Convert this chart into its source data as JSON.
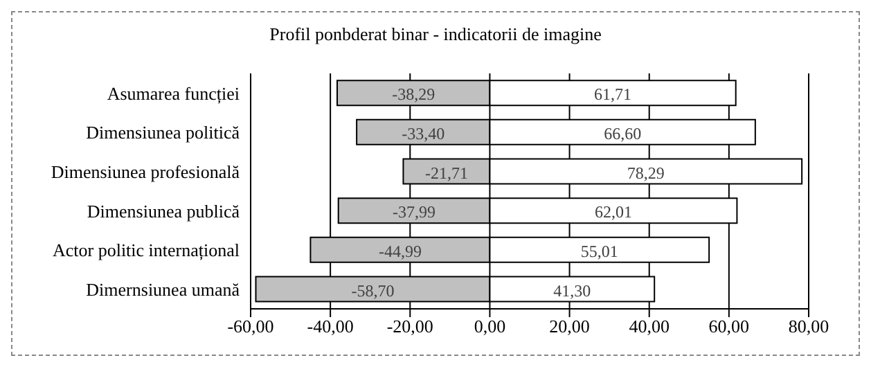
{
  "chart_data": {
    "type": "bar",
    "title": "Profil ponbderat binar - indicatorii de imagine",
    "orientation": "horizontal",
    "stacked": true,
    "categories": [
      "Asumarea funcției",
      "Dimensiunea politică",
      "Dimensiunea profesională",
      "Dimensiunea publică",
      "Actor politic internațional",
      "Dimernsiunea umană"
    ],
    "series": [
      {
        "color": "#c0c0c0",
        "values": [
          -38.29,
          -33.4,
          -21.71,
          -37.99,
          -44.99,
          -58.7
        ],
        "value_labels": [
          "-38,29",
          "-33,40",
          "-21,71",
          "-37,99",
          "-44,99",
          "-58,70"
        ]
      },
      {
        "color": "#ffffff",
        "values": [
          61.71,
          66.6,
          78.29,
          62.01,
          55.01,
          41.3
        ],
        "value_labels": [
          "61,71",
          "66,60",
          "78,29",
          "62,01",
          "55,01",
          "41,30"
        ]
      }
    ],
    "xlim": [
      -60,
      80
    ],
    "xticks": [
      {
        "value": -60,
        "label": "-60,00"
      },
      {
        "value": -40,
        "label": "-40,00"
      },
      {
        "value": -20,
        "label": "-20,00"
      },
      {
        "value": 0,
        "label": "0,00"
      },
      {
        "value": 20,
        "label": "20,00"
      },
      {
        "value": 40,
        "label": "40,00"
      },
      {
        "value": 60,
        "label": "60,00"
      },
      {
        "value": 80,
        "label": "80,00"
      }
    ],
    "grid": "x",
    "legend": false
  }
}
